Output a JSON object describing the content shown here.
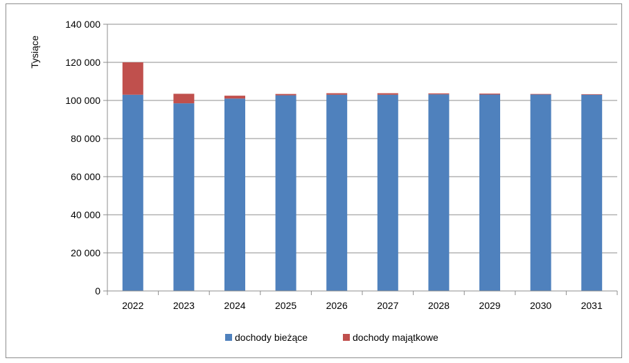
{
  "chart_data": {
    "type": "bar",
    "stacked": true,
    "title": "",
    "xlabel": "",
    "ylabel": "Tysiące",
    "ylim": [
      0,
      140000
    ],
    "yticks": [
      0,
      20000,
      40000,
      60000,
      80000,
      100000,
      120000,
      140000
    ],
    "ytick_labels": [
      "0",
      "20 000",
      "40 000",
      "60 000",
      "80 000",
      "100 000",
      "120 000",
      "140 000"
    ],
    "grid": true,
    "legend_position": "bottom",
    "categories": [
      "2022",
      "2023",
      "2024",
      "2025",
      "2026",
      "2027",
      "2028",
      "2029",
      "2030",
      "2031"
    ],
    "series": [
      {
        "name": "dochody bieżące",
        "color": "#4f81bd",
        "values": [
          103000,
          98500,
          101000,
          102700,
          103000,
          103000,
          103200,
          103100,
          103100,
          103000
        ]
      },
      {
        "name": "dochody majątkowe",
        "color": "#c0504d",
        "values": [
          17000,
          5000,
          1500,
          700,
          800,
          800,
          500,
          500,
          300,
          300
        ]
      }
    ]
  }
}
